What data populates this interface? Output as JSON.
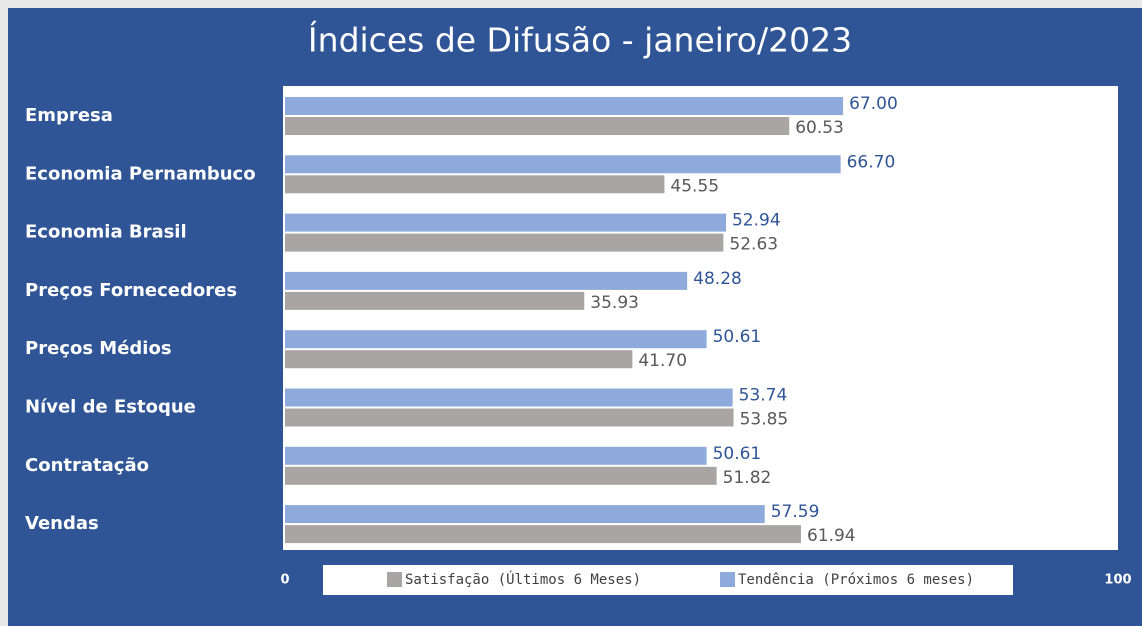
{
  "chart_data": {
    "type": "bar",
    "orientation": "horizontal",
    "title": "Índices de Difusão - janeiro/2023",
    "categories": [
      "Empresa",
      "Economia Pernambuco",
      "Economia Brasil",
      "Preços Fornecedores",
      "Preços Médios",
      "Nível de Estoque",
      "Contratação",
      "Vendas"
    ],
    "series": [
      {
        "name": "Satisfação (Últimos 6 Meses)",
        "color": "#a9a5a5",
        "label_color": "#595959",
        "values": [
          60.53,
          45.55,
          52.63,
          35.93,
          41.7,
          53.85,
          51.82,
          61.94
        ],
        "value_labels": [
          "60.53",
          "45.55",
          "52.63",
          "35.93",
          "41.70",
          "53.85",
          "51.82",
          "61.94"
        ]
      },
      {
        "name": "Tendência (Próximos 6 meses)",
        "color": "#8eaadb",
        "label_color": "#2f5597",
        "values": [
          67,
          66.7,
          52.94,
          48.28,
          50.61,
          53.74,
          50.61,
          57.59
        ],
        "value_labels": [
          "67.00",
          "66.70",
          "52.94",
          "48.28",
          "50.61",
          "53.74",
          "50.61",
          "57.59"
        ]
      }
    ],
    "xlim": [
      0,
      100
    ],
    "xticks": [
      0,
      100
    ],
    "grid": false,
    "legend": "bottom"
  }
}
